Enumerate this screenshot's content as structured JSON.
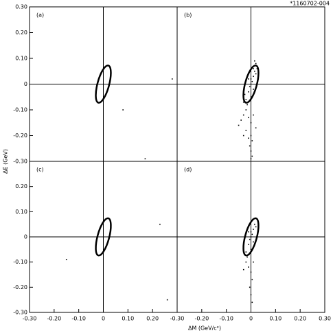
{
  "figure": {
    "label": "*1160702-004",
    "xlabel": "ΔM (GeV/c²)",
    "ylabel": "ΔE (GeV)"
  },
  "chart_data": [
    {
      "type": "scatter",
      "title": "(a)",
      "color": "#000000",
      "xlim": [
        -0.3,
        0.3
      ],
      "ylim": [
        -0.3,
        0.3
      ],
      "yticks": [
        {
          "value": -0.3,
          "label": "-0.30"
        },
        {
          "value": -0.2,
          "label": "-0.20"
        },
        {
          "value": -0.1,
          "label": "-0.10"
        },
        0,
        {
          "value": 0.1,
          "label": "0.10"
        },
        {
          "value": 0.2,
          "label": "0.20"
        },
        {
          "value": 0.3,
          "label": "0.30"
        }
      ],
      "x": [
        0.08,
        0.28,
        0.17
      ],
      "y": [
        -0.1,
        0.02,
        -0.29
      ]
    },
    {
      "type": "scatter",
      "title": "(b)",
      "color": "#000000",
      "xlim": [
        -0.3,
        0.3
      ],
      "ylim": [
        -0.3,
        0.3
      ],
      "x": [
        0,
        0.01,
        -0.01,
        0.005,
        -0.005,
        0.015,
        0.02,
        -0.02,
        0.01,
        -0.01,
        0,
        0.02,
        -0.015,
        0.01,
        0,
        -0.02,
        -0.03,
        -0.04,
        -0.01,
        0,
        0.01,
        -0.05,
        -0.02,
        0,
        0.005,
        -0.005,
        0,
        0.005,
        0,
        -0.03,
        0.02,
        -0.01,
        0.015,
        0.025,
        -0.025,
        0.03,
        -0.03
      ],
      "y": [
        0,
        0.03,
        -0.03,
        0.01,
        -0.01,
        0.05,
        0.08,
        -0.06,
        -0.02,
        0.02,
        -0.05,
        0.04,
        -0.08,
        0.06,
        0.02,
        -0.1,
        -0.12,
        -0.14,
        -0.13,
        -0.15,
        -0.12,
        -0.16,
        -0.18,
        -0.2,
        -0.22,
        -0.24,
        -0.26,
        -0.28,
        -0.29,
        -0.2,
        -0.17,
        -0.21,
        0.09,
        0.06,
        -0.04,
        0.02,
        -0.07
      ]
    },
    {
      "type": "scatter",
      "title": "(c)",
      "color": "#000000",
      "xlim": [
        -0.3,
        0.3
      ],
      "ylim": [
        -0.3,
        0.3
      ],
      "xticks": [
        {
          "value": -0.3,
          "label": "-0.30"
        },
        {
          "value": -0.2,
          "label": "-0.20"
        },
        {
          "value": -0.1,
          "label": "-0.10"
        },
        0,
        {
          "value": 0.1,
          "label": "0.10"
        },
        {
          "value": 0.2,
          "label": "0.20"
        }
      ],
      "yticks": [
        {
          "value": -0.3,
          "label": "-0.30"
        },
        {
          "value": -0.2,
          "label": "-0.20"
        },
        {
          "value": -0.1,
          "label": "-0.10"
        },
        0,
        {
          "value": 0.1,
          "label": "0.10"
        },
        {
          "value": 0.2,
          "label": "0.20"
        }
      ],
      "x": [
        0.23,
        -0.15,
        0.26
      ],
      "y": [
        0.05,
        -0.09,
        -0.25
      ]
    },
    {
      "type": "scatter",
      "title": "(d)",
      "color": "#000000",
      "xlim": [
        -0.3,
        0.3
      ],
      "ylim": [
        -0.3,
        0.3
      ],
      "xticks": [
        {
          "value": -0.3,
          "label": "-0.30"
        },
        {
          "value": -0.2,
          "label": "-0.20"
        },
        {
          "value": -0.1,
          "label": "-0.10"
        },
        0,
        {
          "value": 0.1,
          "label": "0.10"
        },
        {
          "value": 0.2,
          "label": "0.20"
        },
        {
          "value": 0.3,
          "label": "0.30"
        }
      ],
      "x": [
        0,
        0.01,
        -0.01,
        0.005,
        -0.005,
        0.015,
        -0.02,
        0.01,
        -0.01,
        0,
        0.02,
        -0.015,
        0,
        -0.02,
        -0.01,
        0,
        0.005,
        -0.005,
        0,
        0.005,
        -0.03,
        0.01
      ],
      "y": [
        0,
        0.03,
        -0.03,
        0.01,
        -0.01,
        0.05,
        -0.06,
        -0.02,
        0.02,
        -0.05,
        0.04,
        -0.08,
        0.02,
        -0.1,
        -0.12,
        -0.14,
        -0.17,
        -0.2,
        -0.23,
        -0.26,
        -0.13,
        -0.1
      ]
    }
  ]
}
